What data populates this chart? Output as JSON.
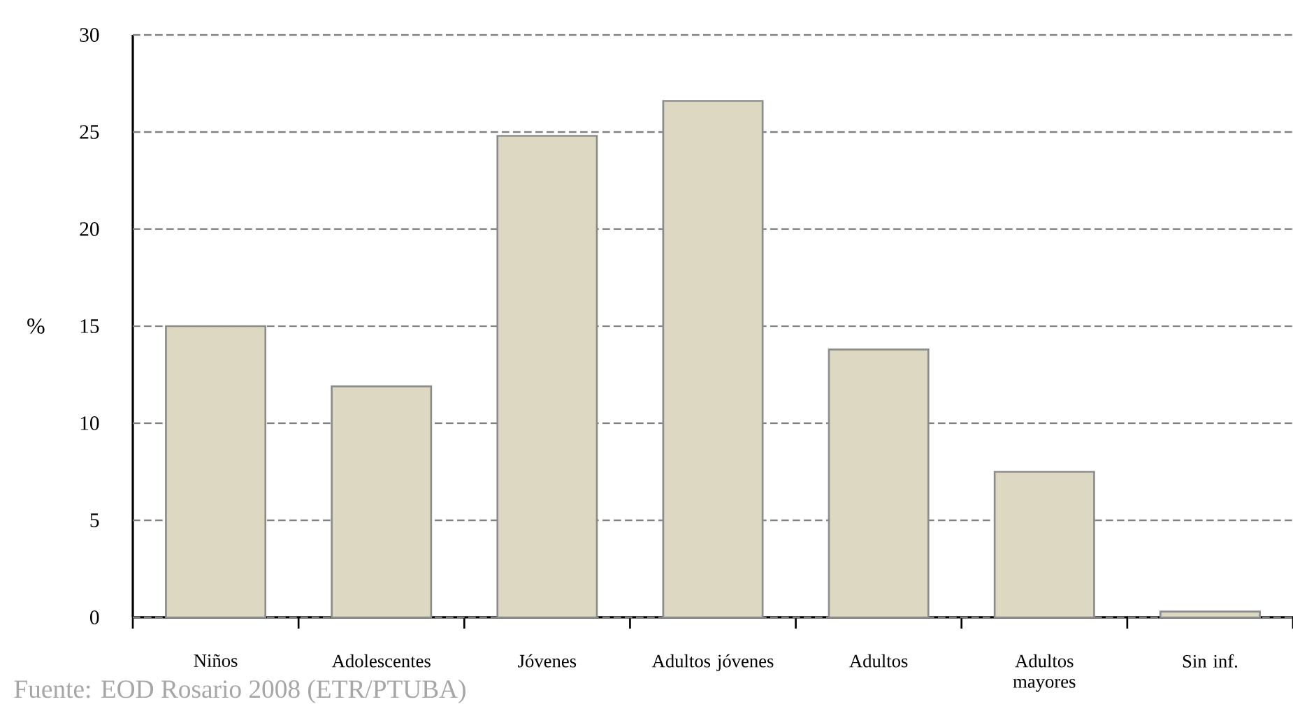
{
  "chart_data": {
    "type": "bar",
    "ylabel": "%",
    "categories": [
      "Niños",
      "Adolescentes",
      "Jóvenes",
      "Adultos jóvenes",
      "Adultos",
      "Adultos mayores",
      "Sin inf."
    ],
    "values": [
      15.0,
      11.9,
      24.8,
      26.6,
      13.8,
      7.5,
      0.3
    ],
    "color": "#ddd8c2",
    "ylim": [
      0,
      30
    ],
    "yticks": [
      0,
      5,
      10,
      15,
      20,
      25,
      30
    ],
    "grid": "y",
    "annotations": [
      "Fuente: EOD Rosario 2008 (ETR/PTUBA)"
    ]
  }
}
